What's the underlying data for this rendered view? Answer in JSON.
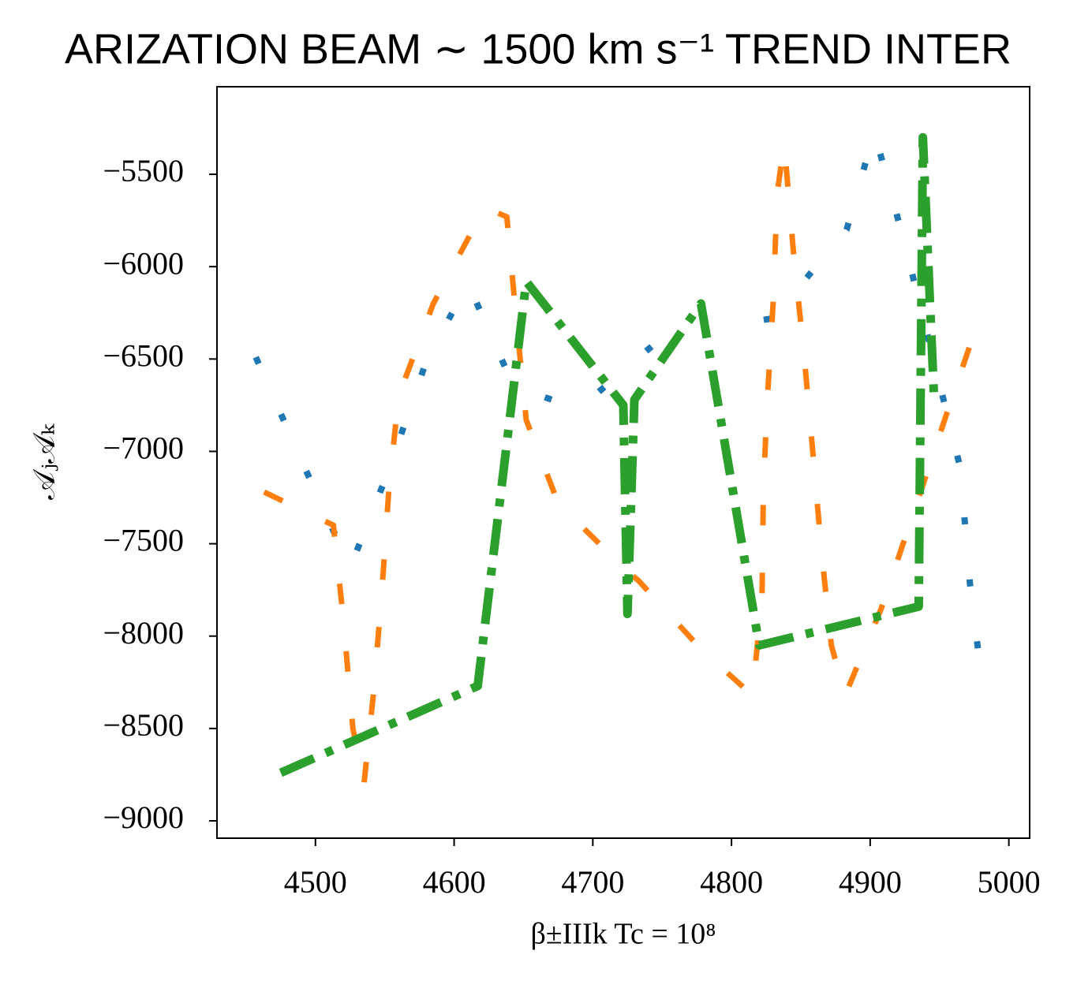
{
  "chart_data": {
    "type": "line",
    "title": "ARIZATION BEAM ∼ 1500 km s⁻¹ TREND INTER",
    "xlabel": "β±IIIk Tc = 10⁸",
    "ylabel": "𝒜ⱼ𝒜ₖ",
    "xlim": [
      4429,
      5015
    ],
    "ylim": [
      -9094,
      -5026
    ],
    "xticks": [
      4500,
      4600,
      4700,
      4800,
      4900,
      5000
    ],
    "yticks": [
      {
        "value": -5500,
        "label": "−5500"
      },
      {
        "value": -6000,
        "label": "−6000"
      },
      {
        "value": -6500,
        "label": "−6500"
      },
      {
        "value": -7000,
        "label": "−7000"
      },
      {
        "value": -7500,
        "label": "−7500"
      },
      {
        "value": -8000,
        "label": "−8000"
      },
      {
        "value": -8500,
        "label": "−8500"
      },
      {
        "value": -9000,
        "label": "−9000"
      }
    ],
    "series": [
      {
        "color": "#1f77b4",
        "dash": "dotted",
        "x": [
          4457,
          4490,
          4525,
          4553,
          4580,
          4610,
          4643,
          4690,
          4752,
          4830,
          4883,
          4903,
          4925,
          4945,
          4965,
          4972,
          4982
        ],
        "values": [
          -6490,
          -7050,
          -7630,
          -7100,
          -6510,
          -6090,
          -6650,
          -6770,
          -6370,
          -6280,
          -5800,
          -5270,
          -5880,
          -6480,
          -7090,
          -7720,
          -8330
        ]
      },
      {
        "color": "#ff7f0e",
        "dash": "dashed",
        "x": [
          4463,
          4513,
          4520,
          4527,
          4535,
          4542,
          4548,
          4553,
          4560,
          4585,
          4622,
          4638,
          4645,
          4652,
          4675,
          4725,
          4733,
          4778,
          4815,
          4822,
          4823,
          4826,
          4830,
          4833,
          4838,
          4845,
          4852,
          4858,
          4865,
          4872,
          4882,
          4908,
          4935,
          4955,
          4980
        ],
        "values": [
          -7220,
          -7400,
          -7900,
          -8500,
          -8800,
          -8300,
          -7750,
          -7200,
          -6700,
          -6200,
          -5680,
          -5730,
          -6300,
          -6830,
          -7280,
          -7650,
          -7700,
          -8070,
          -8320,
          -7800,
          -7200,
          -6700,
          -6200,
          -5600,
          -5330,
          -5950,
          -6450,
          -6950,
          -7550,
          -8050,
          -8320,
          -7850,
          -7250,
          -6800,
          -6250
        ]
      },
      {
        "color": "#2ca02c",
        "dash": "dashdot",
        "x": [
          4475,
          4617,
          4652,
          4722,
          4725,
          4730,
          4778,
          4820,
          4935,
          4938,
          4946
        ],
        "values": [
          -8740,
          -8270,
          -6080,
          -6750,
          -7880,
          -6720,
          -6200,
          -8050,
          -7840,
          -5300,
          -6700
        ]
      }
    ]
  }
}
